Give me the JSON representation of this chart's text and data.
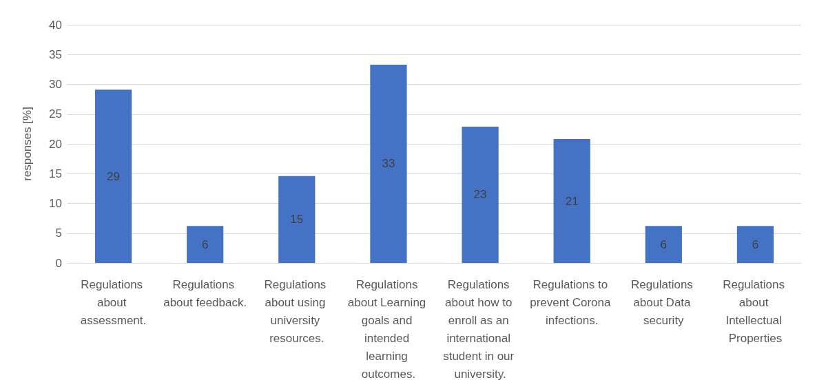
{
  "chart_data": {
    "type": "bar",
    "ylabel": "responses [%]",
    "categories": [
      "Regulations about assessment.",
      "Regulations about feedback.",
      "Regulations about using university resources.",
      "Regulations about Learning goals and intended learning outcomes.",
      "Regulations about how to enroll as an international student in our university.",
      "Regulations to prevent Corona infections.",
      "Regulations about Data security",
      "Regulations about Intellectual Properties"
    ],
    "values": [
      29.1,
      6.2,
      14.6,
      33.3,
      22.9,
      20.8,
      6.2,
      6.2
    ],
    "value_labels": [
      "29",
      "6",
      "15",
      "33",
      "23",
      "21",
      "6",
      "6"
    ],
    "color": "#4472c4",
    "ylim": [
      0,
      40
    ],
    "yticks": [
      0,
      5,
      10,
      15,
      20,
      25,
      30,
      35,
      40
    ],
    "grid": "y"
  }
}
